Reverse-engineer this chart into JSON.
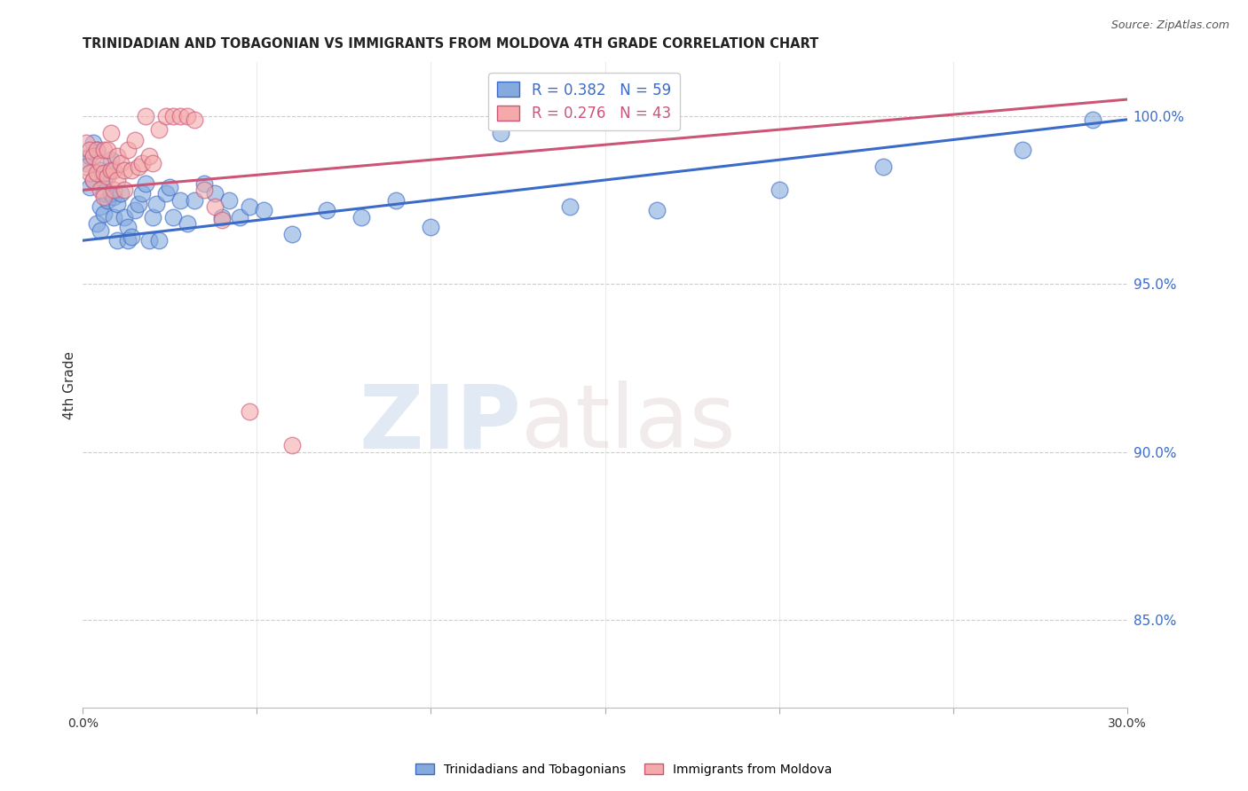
{
  "title": "TRINIDADIAN AND TOBAGONIAN VS IMMIGRANTS FROM MOLDOVA 4TH GRADE CORRELATION CHART",
  "source": "Source: ZipAtlas.com",
  "ylabel": "4th Grade",
  "yaxis_values": [
    0.85,
    0.9,
    0.95,
    1.0
  ],
  "xmin": 0.0,
  "xmax": 0.3,
  "ymin": 0.824,
  "ymax": 1.016,
  "blue_R": 0.382,
  "blue_N": 59,
  "pink_R": 0.276,
  "pink_N": 43,
  "blue_color": "#85AADD",
  "pink_color": "#F4AAAA",
  "blue_line_color": "#3B6BC8",
  "pink_line_color": "#CC5577",
  "scatter_blue_x": [
    0.001,
    0.002,
    0.002,
    0.003,
    0.003,
    0.004,
    0.004,
    0.005,
    0.005,
    0.005,
    0.006,
    0.006,
    0.006,
    0.007,
    0.007,
    0.008,
    0.008,
    0.009,
    0.009,
    0.01,
    0.01,
    0.011,
    0.012,
    0.013,
    0.013,
    0.014,
    0.015,
    0.016,
    0.017,
    0.018,
    0.019,
    0.02,
    0.021,
    0.022,
    0.024,
    0.025,
    0.026,
    0.028,
    0.03,
    0.032,
    0.035,
    0.038,
    0.04,
    0.042,
    0.045,
    0.048,
    0.052,
    0.06,
    0.07,
    0.08,
    0.09,
    0.1,
    0.12,
    0.14,
    0.165,
    0.2,
    0.23,
    0.27,
    0.29
  ],
  "scatter_blue_y": [
    0.986,
    0.988,
    0.979,
    0.992,
    0.981,
    0.99,
    0.968,
    0.984,
    0.973,
    0.966,
    0.977,
    0.971,
    0.981,
    0.983,
    0.975,
    0.977,
    0.987,
    0.97,
    0.976,
    0.974,
    0.963,
    0.977,
    0.97,
    0.967,
    0.963,
    0.964,
    0.972,
    0.974,
    0.977,
    0.98,
    0.963,
    0.97,
    0.974,
    0.963,
    0.977,
    0.979,
    0.97,
    0.975,
    0.968,
    0.975,
    0.98,
    0.977,
    0.97,
    0.975,
    0.97,
    0.973,
    0.972,
    0.965,
    0.972,
    0.97,
    0.975,
    0.967,
    0.995,
    0.973,
    0.972,
    0.978,
    0.985,
    0.99,
    0.999
  ],
  "scatter_pink_x": [
    0.001,
    0.001,
    0.002,
    0.002,
    0.003,
    0.003,
    0.004,
    0.004,
    0.005,
    0.005,
    0.006,
    0.006,
    0.006,
    0.007,
    0.007,
    0.008,
    0.008,
    0.009,
    0.009,
    0.01,
    0.01,
    0.011,
    0.012,
    0.012,
    0.013,
    0.014,
    0.015,
    0.016,
    0.017,
    0.018,
    0.019,
    0.02,
    0.022,
    0.024,
    0.026,
    0.028,
    0.03,
    0.032,
    0.035,
    0.038,
    0.04,
    0.048,
    0.06
  ],
  "scatter_pink_y": [
    0.992,
    0.985,
    0.99,
    0.983,
    0.988,
    0.981,
    0.99,
    0.983,
    0.986,
    0.978,
    0.99,
    0.983,
    0.976,
    0.99,
    0.982,
    0.995,
    0.984,
    0.978,
    0.984,
    0.988,
    0.981,
    0.986,
    0.978,
    0.984,
    0.99,
    0.984,
    0.993,
    0.985,
    0.986,
    1.0,
    0.988,
    0.986,
    0.996,
    1.0,
    1.0,
    1.0,
    1.0,
    0.999,
    0.978,
    0.973,
    0.969,
    0.912,
    0.902
  ],
  "blue_trendline_x": [
    0.0,
    0.3
  ],
  "blue_trendline_y": [
    0.963,
    0.999
  ],
  "pink_trendline_x": [
    0.0,
    0.3
  ],
  "pink_trendline_y": [
    0.978,
    1.005
  ],
  "watermark_zip": "ZIP",
  "watermark_atlas": "atlas",
  "bottom_legend": [
    "Trinidadians and Tobagonians",
    "Immigrants from Moldova"
  ]
}
